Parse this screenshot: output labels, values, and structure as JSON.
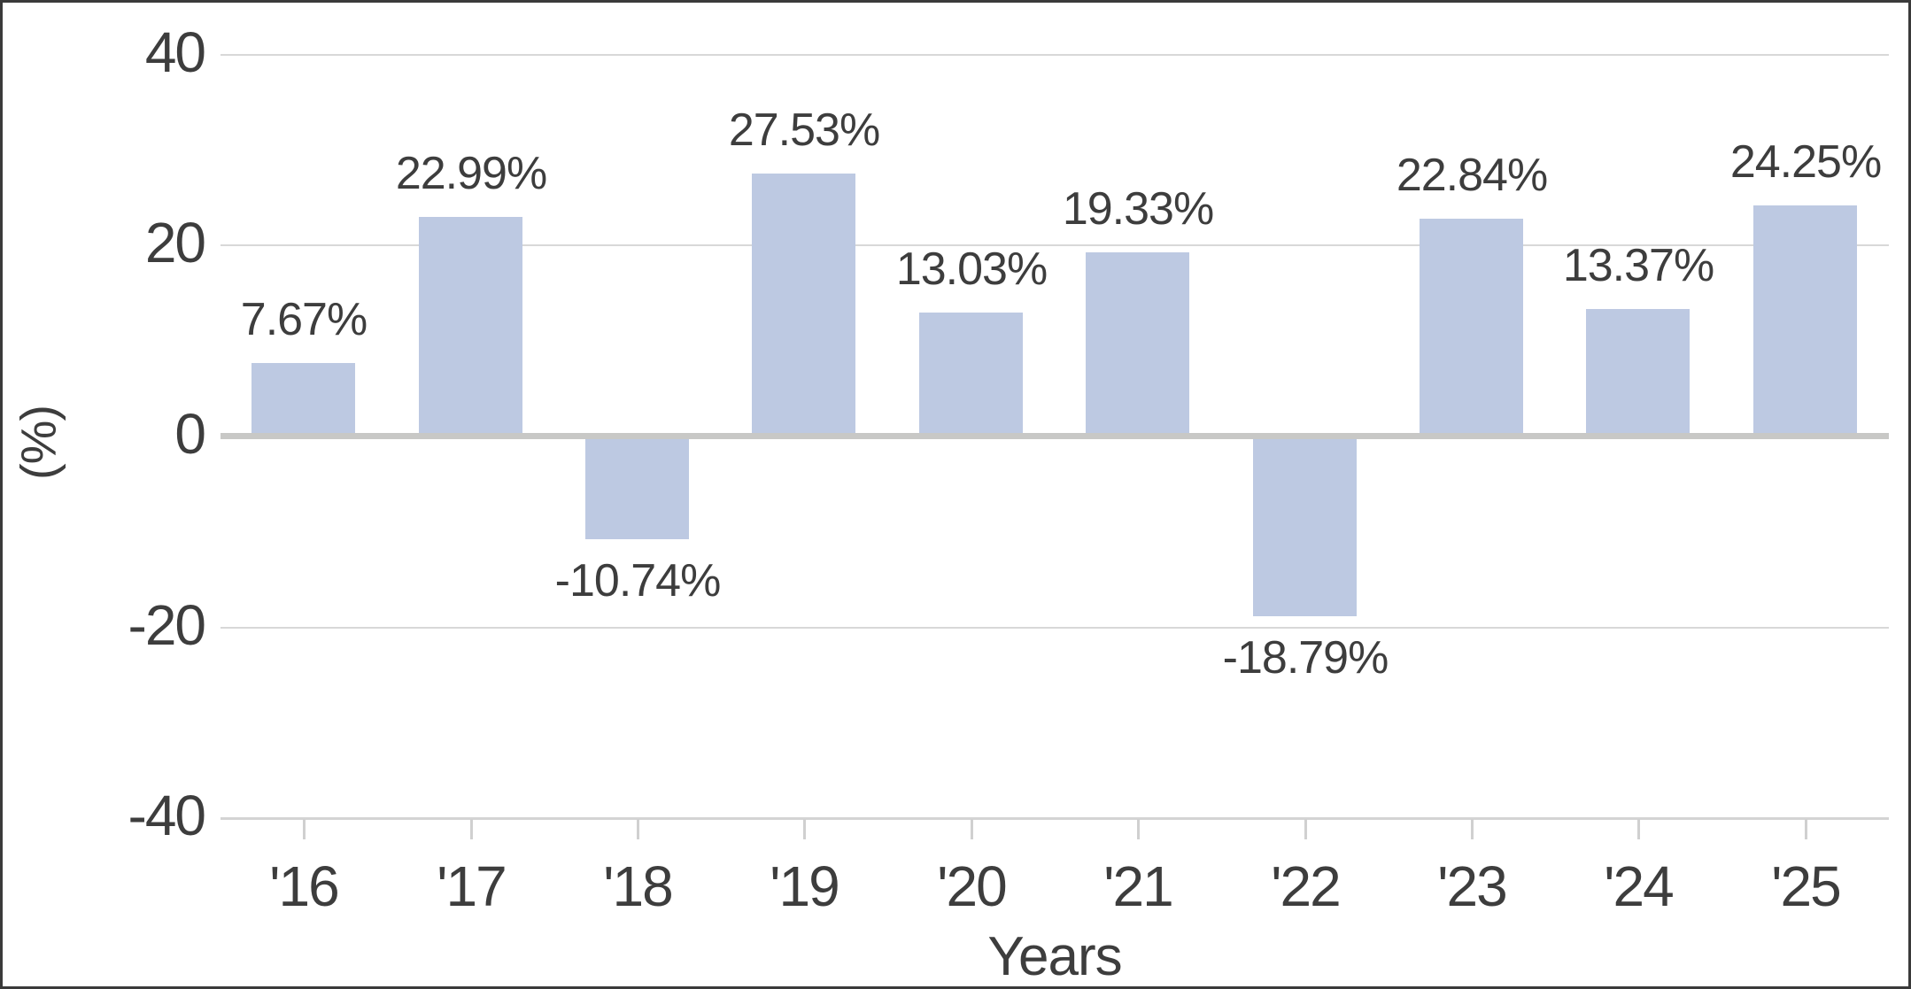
{
  "chart_data": {
    "type": "bar",
    "xlabel": "Years",
    "ylabel": "(%)",
    "categories": [
      "'16",
      "'17",
      "'18",
      "'19",
      "'20",
      "'21",
      "'22",
      "'23",
      "'24",
      "'25"
    ],
    "values": [
      7.67,
      22.99,
      -10.74,
      27.53,
      13.03,
      19.33,
      -18.79,
      22.84,
      13.37,
      24.25
    ],
    "value_labels": [
      "7.67%",
      "22.99%",
      "-10.74%",
      "27.53%",
      "13.03%",
      "19.33%",
      "-18.79%",
      "22.84%",
      "13.37%",
      "24.25%"
    ],
    "ylim": [
      -40,
      40
    ],
    "yticks": [
      40,
      20,
      0,
      -20,
      -40
    ],
    "ytick_labels": [
      "40",
      "20",
      "0",
      "-20",
      "-40"
    ],
    "grid": true,
    "legend": false,
    "bar_color": "#bdc9e2",
    "colors": {
      "grid_line": "#d8d8d8",
      "axis_line": "#d4d4d4",
      "zero_line": "#c8c8c6",
      "tick_mark": "#d0d0d0",
      "text": "#3d3d3d",
      "border": "#3a3a3a",
      "background": "#ffffff"
    }
  }
}
